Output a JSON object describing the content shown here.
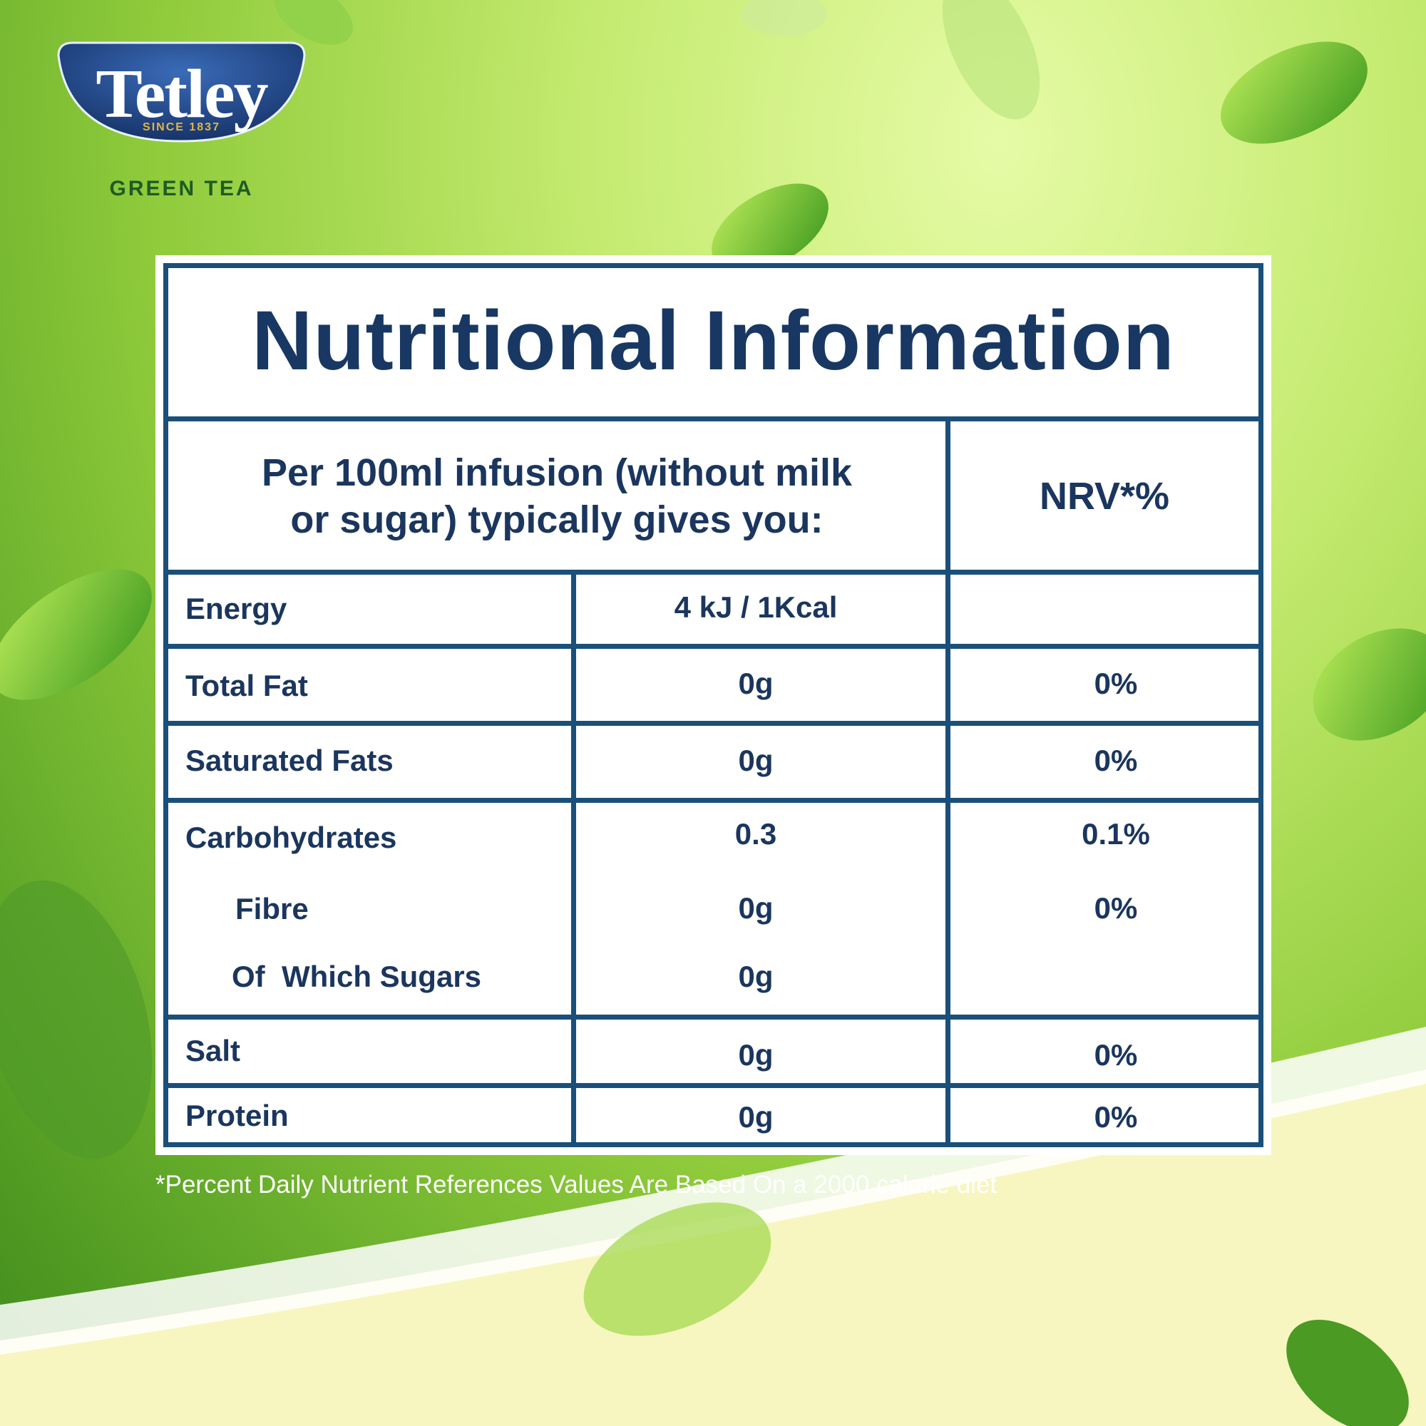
{
  "brand": {
    "name": "Tetley",
    "since": "SINCE 1837",
    "variant": "GREEN TEA"
  },
  "title": "Nutritional Information",
  "header": {
    "per_serving": "Per 100ml infusion (without milk or sugar) typically gives you:",
    "per_serving_line1": "Per 100ml infusion (without milk",
    "per_serving_line2": "or sugar) typically gives you:",
    "nrv": "NRV*%"
  },
  "rows": [
    {
      "name": "Energy",
      "value": "4 kJ / 1Kcal",
      "nrv": ""
    },
    {
      "name": "Total Fat",
      "value": "0g",
      "nrv": "0%"
    },
    {
      "name": "Saturated Fats",
      "value": "0g",
      "nrv": "0%"
    },
    {
      "name": "Carbohydrates",
      "value": "0.3",
      "nrv": "0.1%"
    },
    {
      "name": "Fibre",
      "value": "0g",
      "nrv": "0%"
    },
    {
      "name": "Of  Which Sugars",
      "value": "0g",
      "nrv": ""
    },
    {
      "name": "Salt",
      "value": "0g",
      "nrv": "0%"
    },
    {
      "name": "Protein",
      "value": "0g",
      "nrv": "0%"
    }
  ],
  "footnote": "*Percent Daily Nutrient References Values Are Based On a 2000 calorie diet",
  "colors": {
    "navy": "#183863",
    "border": "#1a4f7a",
    "leaf_green": "#5aa326",
    "logo_blue": "#1e4a8f"
  }
}
